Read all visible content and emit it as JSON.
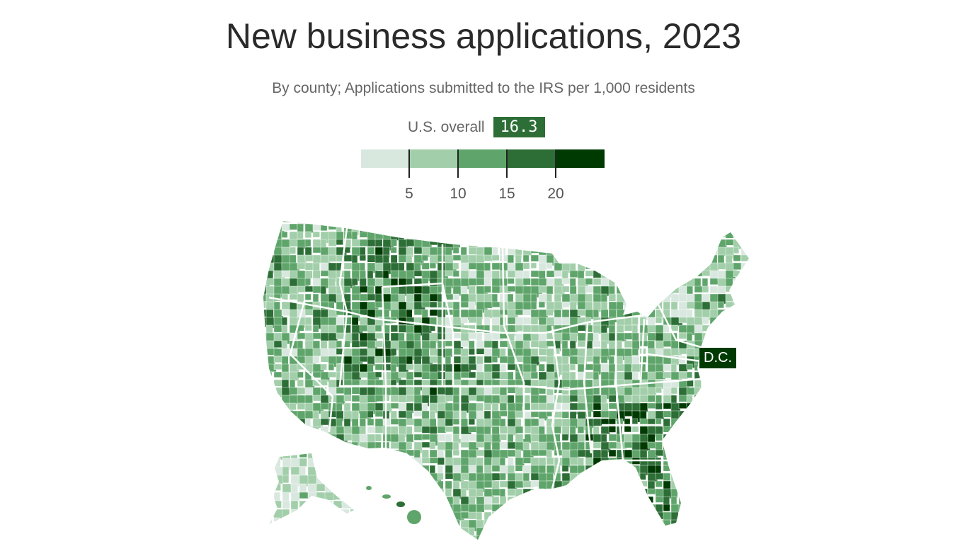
{
  "title": "New business applications, 2023",
  "subtitle": "By county; Applications submitted to the IRS per 1,000 residents",
  "overall": {
    "label": "U.S. overall",
    "value": "16.3"
  },
  "legend": {
    "colors": [
      "#d9e8df",
      "#a2cfaa",
      "#5fa56b",
      "#2d6e37",
      "#003a03"
    ],
    "ticks": [
      "5",
      "10",
      "15",
      "20"
    ]
  },
  "annotation": {
    "dc_label": "D.C."
  },
  "map": {
    "type": "choropleth",
    "region": "United States counties",
    "border_color": "#ffffff"
  }
}
